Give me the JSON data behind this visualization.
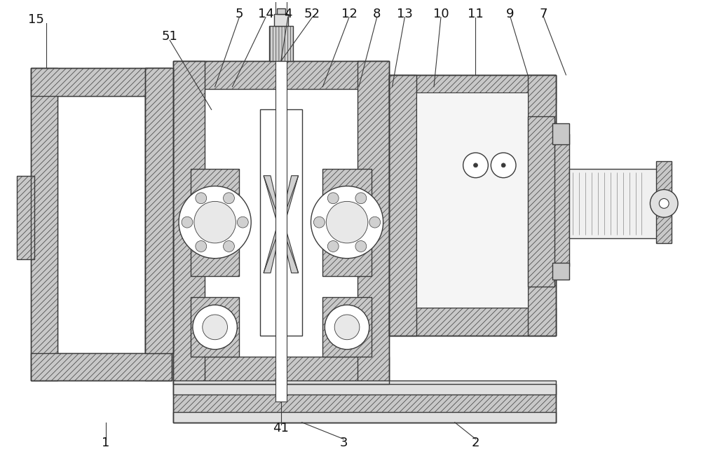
{
  "bg_color": "#ffffff",
  "line_color": "#3a3a3a",
  "fig_width": 10.0,
  "fig_height": 6.65,
  "label_fontsize": 13,
  "hatch_lw": 0.5
}
